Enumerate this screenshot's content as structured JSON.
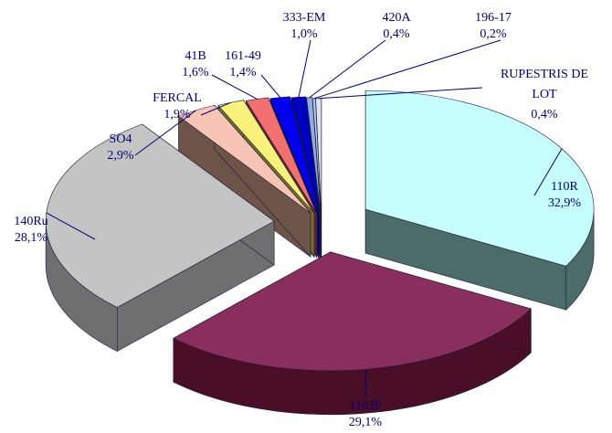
{
  "chart_data": {
    "type": "pie",
    "style": "3d-exploded",
    "title": "",
    "labels": [
      "110R",
      "1103P",
      "140Ru",
      "SO4",
      "FERCAL",
      "41B",
      "161-49",
      "333-EM",
      "420A",
      "196-17",
      "RUPESTRIS DE LOT"
    ],
    "value_labels": [
      "32,9%",
      "29,1%",
      "28,1%",
      "2,9%",
      "1,9%",
      "1,6%",
      "1,4%",
      "1,0%",
      "0,4%",
      "0,2%",
      "0,4%"
    ],
    "values": [
      32.9,
      29.1,
      28.1,
      2.9,
      1.9,
      1.6,
      1.4,
      1.0,
      0.4,
      0.2,
      0.4
    ],
    "colors": [
      "#c6fdfd",
      "#8a2e5e",
      "#c4c4c4",
      "#f7c4b5",
      "#f9f27a",
      "#f27070",
      "#0000ee",
      "#0000c0",
      "#8faee8",
      "#bcc9e6",
      "#dde3f2"
    ],
    "side_colors": [
      "#4b6c68",
      "#4a0f26",
      "#6f6f6f",
      "#6e5448",
      "#76702a",
      "#6a2a2a",
      "#00007a",
      "#000060",
      "#4a5f8a",
      "#5f6a82",
      "#707888"
    ]
  }
}
